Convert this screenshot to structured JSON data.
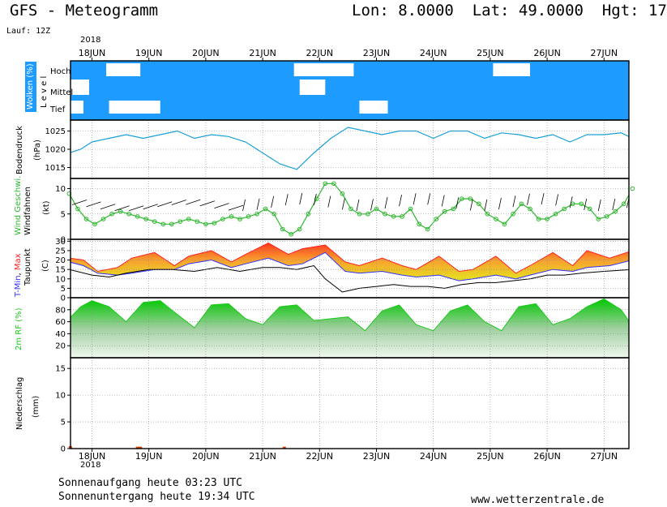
{
  "header": {
    "title": "GFS - Meteogramm",
    "coords": "Lon: 8.0000  Lat: 49.0000  Hgt: 17",
    "run": "Lauf: 12Z",
    "year": "2018"
  },
  "footer": {
    "sunrise": "Sonnenaufgang heute 03:23 UTC",
    "sunset": "Sonnenuntergang heute 19:34 UTC",
    "site": "www.wetterzentrale.de",
    "year": "2018"
  },
  "colors": {
    "cloud_bg": "#1e9bff",
    "pressure": "#1aa0d8",
    "wind": "#2db82d",
    "tmin": "#3030ff",
    "tmax": "#ff2020",
    "rh": "#1ec81e"
  },
  "chart_data": [
    {
      "type": "heatmap",
      "id": "clouds",
      "ylabel": "Wolken (%)",
      "ylabel2": "L e v e l",
      "levels": [
        "Hoch",
        "Mittel",
        "Tief"
      ],
      "categories": [
        "18JUN",
        "19JUN",
        "20JUN",
        "21JUN",
        "22JUN",
        "23JUN",
        "24JUN",
        "25JUN",
        "26JUN",
        "27JUN"
      ],
      "gaps": [
        {
          "level": "Hoch",
          "day": 0.25,
          "len": 0.6
        },
        {
          "level": "Hoch",
          "day": 0.4,
          "len": 0.25
        },
        {
          "level": "Hoch",
          "day": 3.55,
          "len": 0.55
        },
        {
          "level": "Hoch",
          "day": 4.05,
          "len": 0.55
        },
        {
          "level": "Hoch",
          "day": 7.05,
          "len": 0.65
        },
        {
          "level": "Mittel",
          "day": -0.4,
          "len": 0.35
        },
        {
          "level": "Mittel",
          "day": 3.65,
          "len": 0.45
        },
        {
          "level": "Tief",
          "day": -0.4,
          "len": 0.25
        },
        {
          "level": "Tief",
          "day": 0.3,
          "len": 0.9
        },
        {
          "level": "Tief",
          "day": 4.7,
          "len": 0.5
        }
      ]
    },
    {
      "type": "line",
      "id": "pressure",
      "ylabel": "Bodendruck",
      "unit": "(hPa)",
      "yticks": [
        1015,
        1020,
        1025
      ],
      "ylim": [
        1012,
        1028
      ],
      "x": [
        -0.4,
        -0.2,
        0,
        0.3,
        0.6,
        0.9,
        1.2,
        1.5,
        1.8,
        2.1,
        2.4,
        2.7,
        3.0,
        3.3,
        3.6,
        3.9,
        4.2,
        4.5,
        4.8,
        5.1,
        5.4,
        5.7,
        6.0,
        6.3,
        6.6,
        6.9,
        7.2,
        7.5,
        7.8,
        8.1,
        8.4,
        8.7,
        9.0,
        9.3,
        9.5
      ],
      "values": [
        1019,
        1020,
        1022,
        1023,
        1024,
        1023,
        1024,
        1025,
        1023,
        1024,
        1023.5,
        1022,
        1019,
        1016,
        1014.5,
        1019,
        1023,
        1026,
        1025,
        1024,
        1025,
        1025,
        1023,
        1025,
        1025,
        1023,
        1024.5,
        1024,
        1023,
        1024,
        1022,
        1024,
        1024,
        1024.5,
        1023
      ]
    },
    {
      "type": "line",
      "id": "wind",
      "ylabel": "Wind Geschwi.",
      "ylabel2": "Windfahnen",
      "unit": "(kt)",
      "yticks": [
        0,
        5,
        10
      ],
      "ylim": [
        0,
        12
      ],
      "x": [
        -0.4,
        -0.25,
        -0.1,
        0.05,
        0.2,
        0.35,
        0.5,
        0.65,
        0.8,
        0.95,
        1.1,
        1.25,
        1.4,
        1.55,
        1.7,
        1.85,
        2.0,
        2.15,
        2.3,
        2.45,
        2.6,
        2.75,
        2.9,
        3.05,
        3.2,
        3.35,
        3.5,
        3.65,
        3.8,
        3.95,
        4.1,
        4.25,
        4.4,
        4.55,
        4.7,
        4.85,
        5.0,
        5.15,
        5.3,
        5.45,
        5.6,
        5.75,
        5.9,
        6.05,
        6.2,
        6.35,
        6.5,
        6.65,
        6.8,
        6.95,
        7.1,
        7.25,
        7.4,
        7.55,
        7.7,
        7.85,
        8.0,
        8.15,
        8.3,
        8.45,
        8.6,
        8.75,
        8.9,
        9.05,
        9.2,
        9.35,
        9.5
      ],
      "values": [
        9,
        6,
        4,
        3,
        4,
        5,
        5.5,
        5,
        4.5,
        4,
        3.5,
        3,
        3,
        3.5,
        4,
        3.5,
        3,
        3.2,
        4,
        4.5,
        4,
        4.5,
        5,
        6,
        5,
        2,
        1,
        2,
        5,
        8,
        11,
        11,
        9,
        6,
        5,
        5,
        6,
        5,
        4.5,
        4.5,
        6,
        3,
        2,
        4,
        5.5,
        6,
        8,
        8,
        7,
        5,
        4,
        3,
        5,
        7,
        6,
        4,
        4,
        5,
        6,
        7,
        7,
        6,
        4,
        4.5,
        5.5,
        7,
        10
      ]
    },
    {
      "type": "area",
      "id": "temperature",
      "ylabel": "T-Min, Max",
      "ylabel2": "Taupunkt",
      "unit": "(C)",
      "yticks": [
        0,
        5,
        10,
        15,
        20,
        25,
        30
      ],
      "ylim": [
        0,
        31
      ],
      "series": [
        {
          "name": "T-Min",
          "x": [
            -0.4,
            -0.15,
            0.1,
            0.45,
            0.7,
            1.1,
            1.45,
            1.7,
            2.1,
            2.45,
            2.7,
            3.1,
            3.45,
            3.7,
            4.1,
            4.45,
            4.7,
            5.1,
            5.45,
            5.7,
            6.1,
            6.45,
            6.7,
            7.1,
            7.45,
            7.7,
            8.1,
            8.45,
            8.7,
            9.1,
            9.5
          ],
          "values": [
            19,
            17,
            13,
            12,
            13,
            15,
            15,
            18,
            20,
            16,
            18,
            21,
            17,
            18,
            24,
            14,
            13,
            14,
            12,
            11,
            12,
            9,
            10,
            12,
            10,
            12,
            15,
            14,
            16,
            17,
            20
          ]
        },
        {
          "name": "T-Max",
          "x": [
            -0.4,
            -0.15,
            0.1,
            0.45,
            0.7,
            1.1,
            1.45,
            1.7,
            2.1,
            2.45,
            2.7,
            3.1,
            3.45,
            3.7,
            4.1,
            4.45,
            4.7,
            5.1,
            5.45,
            5.7,
            6.1,
            6.45,
            6.7,
            7.1,
            7.45,
            7.7,
            8.1,
            8.45,
            8.7,
            9.1,
            9.5
          ],
          "values": [
            21,
            20,
            14,
            16,
            21,
            24,
            17,
            22,
            25,
            19,
            23,
            29,
            23,
            26,
            28,
            19,
            17,
            21,
            17,
            15,
            22,
            14,
            15,
            22,
            13,
            17,
            24,
            17,
            25,
            21,
            25
          ]
        },
        {
          "name": "Taupunkt",
          "x": [
            -0.4,
            0.0,
            0.3,
            0.6,
            1.0,
            1.4,
            1.8,
            2.2,
            2.6,
            3.0,
            3.3,
            3.6,
            3.9,
            4.1,
            4.4,
            4.7,
            5.0,
            5.3,
            5.6,
            5.9,
            6.2,
            6.5,
            6.8,
            7.1,
            7.4,
            7.7,
            8.0,
            8.3,
            8.6,
            9.0,
            9.5
          ],
          "values": [
            15,
            12,
            11,
            13,
            15,
            15,
            14,
            16,
            14,
            16,
            16,
            15,
            17,
            10,
            3,
            5,
            6,
            7,
            6,
            6,
            5,
            7,
            8,
            8,
            9,
            10,
            12,
            12,
            13,
            14,
            15
          ]
        }
      ]
    },
    {
      "type": "area",
      "id": "humidity",
      "ylabel": "2m RF (%)",
      "yticks": [
        20,
        40,
        60,
        80
      ],
      "ylim": [
        0,
        100
      ],
      "x": [
        -0.4,
        -0.2,
        0,
        0.3,
        0.6,
        0.9,
        1.2,
        1.5,
        1.8,
        2.1,
        2.4,
        2.7,
        3.0,
        3.3,
        3.6,
        3.9,
        4.2,
        4.5,
        4.8,
        5.1,
        5.4,
        5.7,
        6.0,
        6.3,
        6.6,
        6.9,
        7.2,
        7.5,
        7.8,
        8.1,
        8.4,
        8.7,
        9.0,
        9.3,
        9.5
      ],
      "values": [
        65,
        85,
        95,
        85,
        60,
        92,
        95,
        72,
        50,
        88,
        90,
        65,
        55,
        85,
        88,
        62,
        65,
        68,
        45,
        78,
        88,
        55,
        45,
        78,
        88,
        60,
        45,
        85,
        90,
        55,
        65,
        85,
        98,
        80,
        52
      ]
    },
    {
      "type": "bar",
      "id": "precip",
      "ylabel": "Niederschlag",
      "unit": "(mm)",
      "yticks": [
        0,
        5,
        10,
        15
      ],
      "ylim": [
        0,
        17
      ],
      "x": [
        -0.38,
        0.8,
        0.85,
        3.38
      ],
      "values": [
        0.3,
        0.2,
        0.2,
        0.2
      ]
    }
  ]
}
